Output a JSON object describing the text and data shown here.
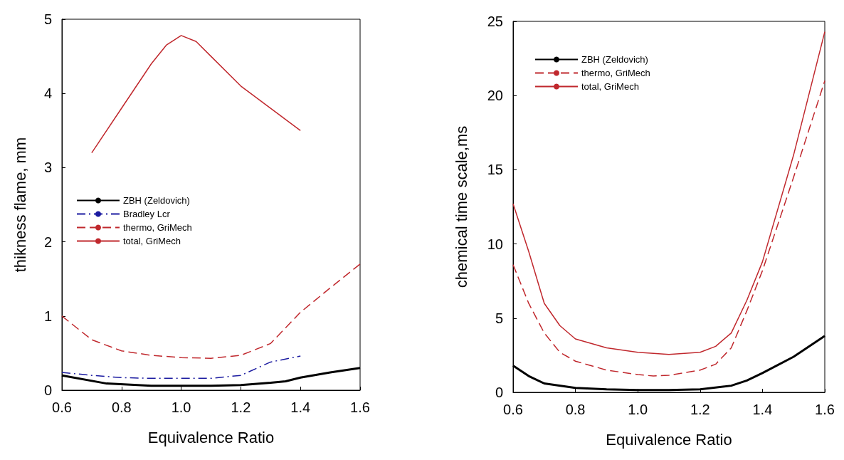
{
  "chart_data": [
    {
      "type": "line",
      "xlabel": "Equivalence Ratio",
      "ylabel": "thikness flame, mm",
      "xlim": [
        0.6,
        1.6
      ],
      "xticks": [
        0.6,
        0.8,
        {
          "value": 1.0,
          "label": "1.0"
        },
        1.2,
        1.4,
        1.6
      ],
      "ylim": [
        0,
        5
      ],
      "yticks": [
        0,
        1,
        2,
        3,
        4,
        5
      ],
      "grid": false,
      "legend": "center left",
      "marker": "none",
      "series": [
        {
          "name": "ZBH (Zeldovich)",
          "color": "#000000",
          "line_style": "solid",
          "x": [
            0.6,
            0.75,
            0.9,
            1.0,
            1.1,
            1.2,
            1.3,
            1.35,
            1.4,
            1.5,
            1.6
          ],
          "values": [
            0.2,
            0.09,
            0.06,
            0.06,
            0.06,
            0.07,
            0.1,
            0.12,
            0.17,
            0.24,
            0.3
          ]
        },
        {
          "name": "Bradley Lcr",
          "color": "#1a1aa0",
          "line_style": "dashdot",
          "x": [
            0.6,
            0.7,
            0.8,
            0.9,
            1.0,
            1.1,
            1.2,
            1.3,
            1.4
          ],
          "values": [
            0.24,
            0.2,
            0.17,
            0.16,
            0.16,
            0.16,
            0.2,
            0.38,
            0.46
          ]
        },
        {
          "name": "thermo, GriMech",
          "color": "#c0282d",
          "line_style": "dashed",
          "x": [
            0.6,
            0.7,
            0.8,
            0.9,
            1.0,
            1.1,
            1.2,
            1.3,
            1.4,
            1.5,
            1.6
          ],
          "values": [
            1.0,
            0.68,
            0.53,
            0.47,
            0.44,
            0.43,
            0.47,
            0.63,
            1.05,
            1.38,
            1.7
          ]
        },
        {
          "name": "total, GriMech",
          "color": "#c0282d",
          "line_style": "solid",
          "x": [
            0.7,
            0.8,
            0.9,
            0.95,
            1.0,
            1.05,
            1.1,
            1.2,
            1.3,
            1.4
          ],
          "values": [
            3.2,
            3.8,
            4.4,
            4.65,
            4.78,
            4.7,
            4.5,
            4.1,
            3.8,
            3.5
          ]
        }
      ]
    },
    {
      "type": "line",
      "xlabel": "Equivalence Ratio",
      "ylabel": "chemical time scale,ms",
      "xlim": [
        0.6,
        1.6
      ],
      "xticks": [
        0.6,
        0.8,
        {
          "value": 1.0,
          "label": "1.0"
        },
        1.2,
        1.4,
        1.6
      ],
      "ylim": [
        0,
        25
      ],
      "yticks": [
        0,
        5,
        10,
        15,
        20,
        25
      ],
      "grid": false,
      "legend": "top left",
      "marker": "none",
      "series": [
        {
          "name": "ZBH (Zeldovich)",
          "color": "#000000",
          "line_style": "solid",
          "x": [
            0.6,
            0.65,
            0.7,
            0.8,
            0.9,
            1.0,
            1.1,
            1.2,
            1.3,
            1.35,
            1.4,
            1.5,
            1.6
          ],
          "values": [
            1.8,
            1.1,
            0.6,
            0.3,
            0.2,
            0.15,
            0.15,
            0.2,
            0.45,
            0.8,
            1.3,
            2.4,
            3.8
          ]
        },
        {
          "name": "thermo, GriMech",
          "color": "#c0282d",
          "line_style": "dashed",
          "x": [
            0.6,
            0.65,
            0.7,
            0.75,
            0.8,
            0.9,
            1.0,
            1.05,
            1.1,
            1.2,
            1.25,
            1.3,
            1.35,
            1.4,
            1.5,
            1.6
          ],
          "values": [
            8.6,
            6.0,
            4.0,
            2.7,
            2.1,
            1.5,
            1.2,
            1.1,
            1.15,
            1.5,
            1.9,
            3.0,
            5.5,
            8.2,
            14.5,
            21
          ]
        },
        {
          "name": "total, GriMech",
          "color": "#c0282d",
          "line_style": "solid",
          "x": [
            0.6,
            0.65,
            0.7,
            0.75,
            0.8,
            0.9,
            1.0,
            1.1,
            1.2,
            1.25,
            1.3,
            1.35,
            1.4,
            1.5,
            1.6
          ],
          "values": [
            12.7,
            9.5,
            6.0,
            4.5,
            3.6,
            3.0,
            2.7,
            2.55,
            2.7,
            3.1,
            4.0,
            6.2,
            8.8,
            16,
            24.3
          ]
        }
      ]
    }
  ]
}
